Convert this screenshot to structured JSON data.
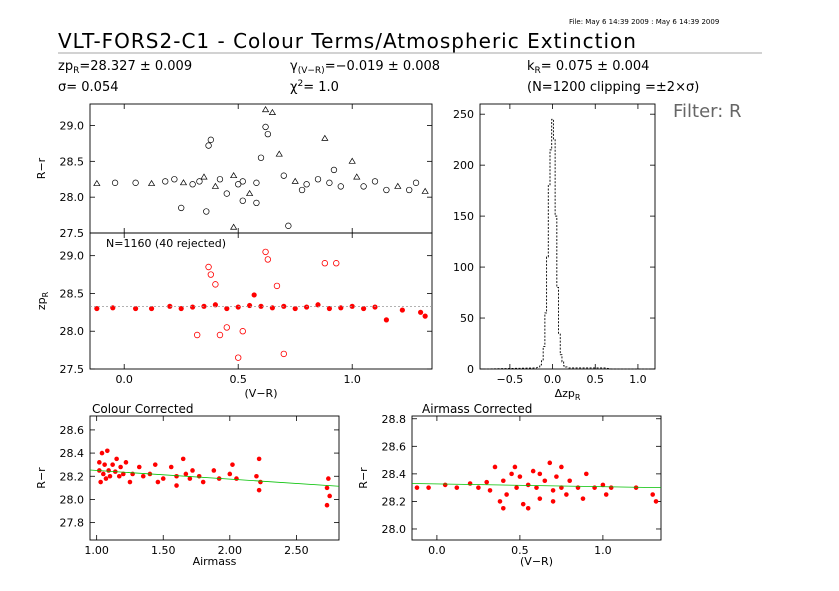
{
  "header": {
    "file_stamp": "File: May  6 14:39 2009 : May  6 14:39 2009",
    "title": "VLT-FORS2-C1 - Colour Terms/Atmospheric Extinction",
    "zp": "zp",
    "zp_sub": "R",
    "zp_value": "=28.327 ± 0.009",
    "sigma": "σ=  0.054",
    "gamma": "γ",
    "gamma_sub": "(V−R)",
    "gamma_value": "=−0.019 ± 0.008",
    "chi2_label": "χ",
    "chi2_sup": "2",
    "chi2_value": "=   1.0",
    "k": "k",
    "k_sub": "R",
    "k_value": "=  0.075 ± 0.004",
    "clip_note": "(N=1200 clipping =±2×σ)",
    "filter_label": "Filter: R"
  },
  "colors": {
    "data": "#ff0000",
    "fit": "#00c000",
    "axis": "#000000",
    "bg": "#ffffff"
  },
  "chart_data": [
    {
      "id": "raw",
      "type": "scatter",
      "title": "",
      "xlabel": "",
      "ylabel": "R−r",
      "xlim": [
        -0.15,
        1.35
      ],
      "ylim": [
        27.5,
        29.3
      ],
      "yticks": [
        27.5,
        28.0,
        28.5,
        29.0
      ],
      "ytick_labels": [
        "27.5",
        "28.0",
        "28.5",
        "29.0"
      ],
      "xticks": [
        0.0,
        0.5,
        1.0
      ],
      "marker": "open circle / triangle",
      "series": [
        {
          "values_xy": [
            [
              -0.12,
              28.19
            ],
            [
              -0.04,
              28.2
            ],
            [
              0.05,
              28.2
            ],
            [
              0.12,
              28.19
            ],
            [
              0.18,
              28.22
            ],
            [
              0.22,
              28.25
            ],
            [
              0.26,
              28.2
            ],
            [
              0.3,
              28.18
            ],
            [
              0.33,
              28.22
            ],
            [
              0.35,
              28.28
            ],
            [
              0.37,
              28.72
            ],
            [
              0.38,
              28.8
            ],
            [
              0.4,
              28.15
            ],
            [
              0.42,
              28.25
            ],
            [
              0.45,
              28.05
            ],
            [
              0.48,
              28.3
            ],
            [
              0.5,
              28.18
            ],
            [
              0.52,
              28.22
            ],
            [
              0.55,
              28.05
            ],
            [
              0.58,
              28.2
            ],
            [
              0.6,
              28.55
            ],
            [
              0.62,
              29.22
            ],
            [
              0.62,
              28.98
            ],
            [
              0.63,
              28.88
            ],
            [
              0.65,
              29.18
            ],
            [
              0.7,
              28.3
            ],
            [
              0.72,
              27.6
            ],
            [
              0.75,
              28.22
            ],
            [
              0.8,
              28.18
            ],
            [
              0.85,
              28.25
            ],
            [
              0.88,
              28.82
            ],
            [
              0.9,
              28.2
            ],
            [
              0.95,
              28.15
            ],
            [
              1.0,
              28.5
            ],
            [
              1.05,
              28.15
            ],
            [
              1.1,
              28.22
            ],
            [
              1.2,
              28.15
            ],
            [
              1.25,
              28.1
            ],
            [
              1.28,
              28.2
            ],
            [
              1.32,
              28.08
            ],
            [
              0.25,
              27.85
            ],
            [
              0.36,
              27.8
            ],
            [
              0.48,
              27.58
            ],
            [
              0.52,
              27.95
            ],
            [
              0.58,
              27.92
            ],
            [
              0.68,
              28.6
            ],
            [
              0.78,
              28.1
            ],
            [
              0.92,
              28.38
            ],
            [
              1.02,
              28.28
            ],
            [
              1.15,
              28.1
            ]
          ]
        }
      ]
    },
    {
      "id": "corrected",
      "type": "scatter",
      "title": "",
      "annotation": "N=1160 (40 rejected)",
      "xlabel": "(V−R)",
      "ylabel": "zp",
      "ylabel_sub": "R",
      "xlim": [
        -0.15,
        1.35
      ],
      "ylim": [
        27.5,
        29.3
      ],
      "yticks": [
        27.5,
        28.0,
        28.5,
        29.0
      ],
      "ytick_labels": [
        "27.5",
        "28.0",
        "28.5",
        "29.0"
      ],
      "xticks": [
        0.0,
        0.5,
        1.0
      ],
      "xtick_labels": [
        "0.0",
        "0.5",
        "1.0"
      ],
      "fit_line": {
        "y": 28.327
      },
      "series": [
        {
          "values_xy": [
            [
              -0.12,
              28.3
            ],
            [
              -0.05,
              28.31
            ],
            [
              0.05,
              28.3
            ],
            [
              0.12,
              28.3
            ],
            [
              0.2,
              28.33
            ],
            [
              0.25,
              28.3
            ],
            [
              0.3,
              28.32
            ],
            [
              0.35,
              28.33
            ],
            [
              0.4,
              28.35
            ],
            [
              0.45,
              28.3
            ],
            [
              0.5,
              28.32
            ],
            [
              0.55,
              28.34
            ],
            [
              0.6,
              28.33
            ],
            [
              0.65,
              28.31
            ],
            [
              0.7,
              28.33
            ],
            [
              0.75,
              28.3
            ],
            [
              0.8,
              28.32
            ],
            [
              0.85,
              28.35
            ],
            [
              0.9,
              28.3
            ],
            [
              0.95,
              28.31
            ],
            [
              1.0,
              28.33
            ],
            [
              1.05,
              28.3
            ],
            [
              1.1,
              28.32
            ],
            [
              1.22,
              28.28
            ],
            [
              1.3,
              28.25
            ],
            [
              1.32,
              28.2
            ],
            [
              0.37,
              28.85
            ],
            [
              0.38,
              28.75
            ],
            [
              0.4,
              28.62
            ],
            [
              0.45,
              28.05
            ],
            [
              0.5,
              27.65
            ],
            [
              0.57,
              28.48
            ],
            [
              0.62,
              29.05
            ],
            [
              0.63,
              28.95
            ],
            [
              0.67,
              28.6
            ],
            [
              0.7,
              27.7
            ],
            [
              0.88,
              28.9
            ],
            [
              0.93,
              28.9
            ],
            [
              0.32,
              27.95
            ],
            [
              0.42,
              27.95
            ],
            [
              0.52,
              28.0
            ],
            [
              1.15,
              28.15
            ]
          ]
        }
      ]
    },
    {
      "id": "histogram",
      "type": "bar",
      "title": "",
      "xlabel": "Δzp",
      "xlabel_sub": "R",
      "ylabel": "",
      "xlim": [
        -0.85,
        1.2
      ],
      "ylim": [
        0,
        260
      ],
      "yticks": [
        0,
        50,
        100,
        150,
        200,
        250
      ],
      "ytick_labels": [
        "0",
        "50",
        "100",
        "150",
        "200",
        "250"
      ],
      "xticks": [
        -0.5,
        0.0,
        0.5,
        1.0
      ],
      "xtick_labels": [
        "−0.5",
        "0.0",
        "0.5",
        "1.0"
      ],
      "bin_width": 0.02,
      "x": [
        -0.8,
        -0.2,
        -0.16,
        -0.14,
        -0.12,
        -0.1,
        -0.08,
        -0.06,
        -0.04,
        -0.02,
        0.0,
        0.02,
        0.04,
        0.06,
        0.08,
        0.1,
        0.12,
        0.14,
        0.16,
        0.2,
        0.3,
        0.5,
        0.6,
        0.7,
        1.0
      ],
      "values": [
        0,
        1,
        2,
        4,
        8,
        22,
        55,
        110,
        180,
        215,
        245,
        225,
        150,
        80,
        35,
        14,
        7,
        3,
        2,
        1,
        1,
        1,
        1,
        0,
        0
      ]
    },
    {
      "id": "colour-corrected",
      "type": "scatter",
      "title": "Colour Corrected",
      "xlabel": "Airmass",
      "ylabel": "R−r",
      "xlim": [
        0.95,
        2.82
      ],
      "ylim": [
        27.65,
        28.72
      ],
      "yticks": [
        27.8,
        28.0,
        28.2,
        28.4,
        28.6
      ],
      "ytick_labels": [
        "27.8",
        "28.0",
        "28.2",
        "28.4",
        "28.6"
      ],
      "xticks": [
        1.0,
        1.5,
        2.0,
        2.5
      ],
      "xtick_labels": [
        "1.00",
        "1.50",
        "2.00",
        "2.50"
      ],
      "fit_line": {
        "x": [
          0.95,
          2.82
        ],
        "y": [
          28.254,
          28.114
        ]
      },
      "series": [
        {
          "values_xy": [
            [
              1.02,
              28.25
            ],
            [
              1.02,
              28.32
            ],
            [
              1.03,
              28.15
            ],
            [
              1.04,
              28.4
            ],
            [
              1.05,
              28.22
            ],
            [
              1.06,
              28.3
            ],
            [
              1.07,
              28.18
            ],
            [
              1.08,
              28.42
            ],
            [
              1.09,
              28.25
            ],
            [
              1.1,
              28.2
            ],
            [
              1.12,
              28.3
            ],
            [
              1.14,
              28.24
            ],
            [
              1.15,
              28.35
            ],
            [
              1.17,
              28.2
            ],
            [
              1.18,
              28.28
            ],
            [
              1.2,
              28.22
            ],
            [
              1.22,
              28.32
            ],
            [
              1.25,
              28.15
            ],
            [
              1.27,
              28.22
            ],
            [
              1.32,
              28.28
            ],
            [
              1.35,
              28.2
            ],
            [
              1.4,
              28.22
            ],
            [
              1.44,
              28.3
            ],
            [
              1.46,
              28.15
            ],
            [
              1.5,
              28.18
            ],
            [
              1.56,
              28.28
            ],
            [
              1.6,
              28.2
            ],
            [
              1.6,
              28.12
            ],
            [
              1.65,
              28.35
            ],
            [
              1.67,
              28.22
            ],
            [
              1.7,
              28.18
            ],
            [
              1.72,
              28.25
            ],
            [
              1.77,
              28.2
            ],
            [
              1.8,
              28.15
            ],
            [
              1.88,
              28.25
            ],
            [
              1.92,
              28.18
            ],
            [
              2.0,
              28.22
            ],
            [
              2.02,
              28.3
            ],
            [
              2.05,
              28.18
            ],
            [
              2.2,
              28.2
            ],
            [
              2.22,
              28.35
            ],
            [
              2.22,
              28.08
            ],
            [
              2.23,
              28.15
            ],
            [
              2.73,
              28.1
            ],
            [
              2.73,
              27.95
            ],
            [
              2.74,
              28.18
            ],
            [
              2.75,
              28.03
            ]
          ]
        }
      ]
    },
    {
      "id": "airmass-corrected",
      "type": "scatter",
      "title": "Airmass Corrected",
      "xlabel": "(V−R)",
      "ylabel": "R−r",
      "xlim": [
        -0.15,
        1.35
      ],
      "ylim": [
        27.92,
        28.82
      ],
      "yticks": [
        28.0,
        28.2,
        28.4,
        28.6,
        28.8
      ],
      "ytick_labels": [
        "28.0",
        "28.2",
        "28.4",
        "28.6",
        "28.8"
      ],
      "xticks": [
        0.0,
        0.5,
        1.0
      ],
      "xtick_labels": [
        "0.0",
        "0.5",
        "1.0"
      ],
      "fit_line": {
        "x": [
          -0.15,
          1.35
        ],
        "y": [
          28.33,
          28.3
        ]
      },
      "series": [
        {
          "values_xy": [
            [
              -0.12,
              28.3
            ],
            [
              -0.05,
              28.3
            ],
            [
              0.05,
              28.32
            ],
            [
              0.12,
              28.3
            ],
            [
              0.2,
              28.33
            ],
            [
              0.25,
              28.3
            ],
            [
              0.3,
              28.34
            ],
            [
              0.32,
              28.28
            ],
            [
              0.35,
              28.45
            ],
            [
              0.38,
              28.2
            ],
            [
              0.4,
              28.35
            ],
            [
              0.42,
              28.25
            ],
            [
              0.45,
              28.4
            ],
            [
              0.48,
              28.3
            ],
            [
              0.5,
              28.38
            ],
            [
              0.52,
              28.18
            ],
            [
              0.55,
              28.32
            ],
            [
              0.58,
              28.42
            ],
            [
              0.6,
              28.3
            ],
            [
              0.62,
              28.22
            ],
            [
              0.65,
              28.35
            ],
            [
              0.68,
              28.48
            ],
            [
              0.7,
              28.28
            ],
            [
              0.72,
              28.38
            ],
            [
              0.75,
              28.3
            ],
            [
              0.78,
              28.25
            ],
            [
              0.8,
              28.35
            ],
            [
              0.85,
              28.3
            ],
            [
              0.88,
              28.22
            ],
            [
              0.9,
              28.4
            ],
            [
              0.95,
              28.3
            ],
            [
              1.0,
              28.32
            ],
            [
              1.02,
              28.25
            ],
            [
              1.05,
              28.3
            ],
            [
              1.2,
              28.3
            ],
            [
              1.3,
              28.25
            ],
            [
              1.32,
              28.2
            ],
            [
              0.4,
              28.15
            ],
            [
              0.47,
              28.45
            ],
            [
              0.55,
              28.15
            ],
            [
              0.62,
              28.4
            ],
            [
              0.7,
              28.2
            ],
            [
              0.75,
              28.45
            ]
          ]
        }
      ]
    }
  ]
}
